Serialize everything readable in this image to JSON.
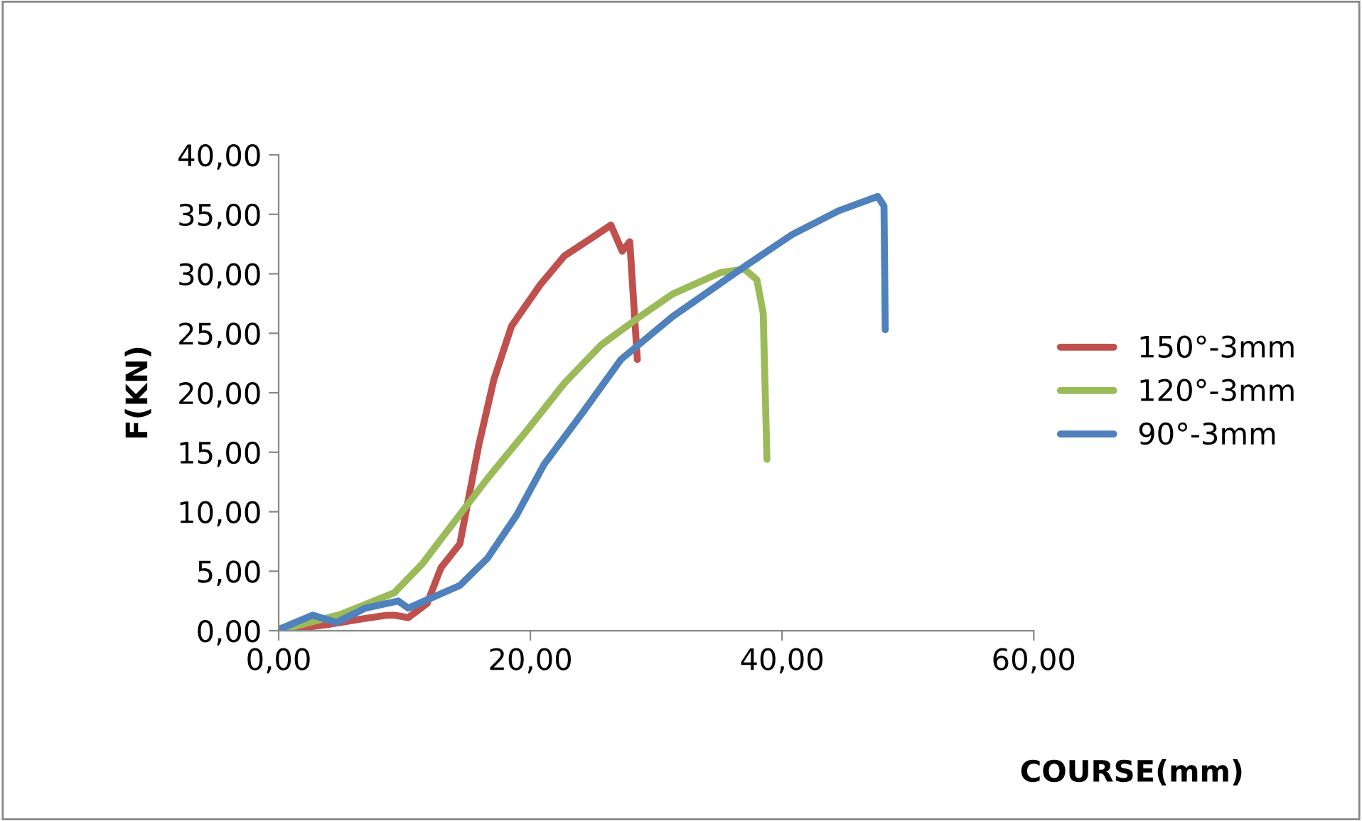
{
  "chart_data": {
    "type": "line",
    "xlabel": "COURSE(mm)",
    "ylabel": "F(KN)",
    "legend": "right",
    "grid": false,
    "marker": "none",
    "line_style": "solid",
    "xlim": [
      0,
      60
    ],
    "ylim": [
      0,
      40
    ],
    "xticks": [
      {
        "value": 0,
        "label": "0,00"
      },
      {
        "value": 20,
        "label": "20,00"
      },
      {
        "value": 40,
        "label": "40,00"
      },
      {
        "value": 60,
        "label": "60,00"
      }
    ],
    "yticks": [
      {
        "value": 0,
        "label": "0,00"
      },
      {
        "value": 5,
        "label": "5,00"
      },
      {
        "value": 10,
        "label": "10,00"
      },
      {
        "value": 15,
        "label": "15,00"
      },
      {
        "value": 20,
        "label": "20,00"
      },
      {
        "value": 25,
        "label": "25,00"
      },
      {
        "value": 30,
        "label": "30,00"
      },
      {
        "value": 35,
        "label": "35,00"
      },
      {
        "value": 40,
        "label": "40,00"
      }
    ],
    "series": [
      {
        "name": "150°-3mm",
        "color": "#c0504d",
        "x": [
          0,
          3.8,
          6.7,
          8.6,
          9.2,
          10.3,
          11.8,
          12.9,
          14.4,
          15.9,
          17.1,
          18.5,
          20.8,
          22.7,
          25.0,
          26.4,
          27.3,
          27.9,
          28.5
        ],
        "values": [
          0,
          0.5,
          1.0,
          1.3,
          1.3,
          1.1,
          2.3,
          5.3,
          7.3,
          15.6,
          21.1,
          25.6,
          29.1,
          31.5,
          33.1,
          34.1,
          31.9,
          32.7,
          22.8
        ]
      },
      {
        "name": "120°-3mm",
        "color": "#9bbb59",
        "x": [
          0,
          5.0,
          9.2,
          11.4,
          13.7,
          16.6,
          19.7,
          22.7,
          25.6,
          28.7,
          31.3,
          35.1,
          37.0,
          38.0,
          38.5,
          38.8
        ],
        "values": [
          0,
          1.4,
          3.2,
          5.6,
          8.8,
          12.8,
          16.8,
          20.8,
          24.0,
          26.4,
          28.3,
          30.1,
          30.4,
          29.5,
          26.7,
          14.4
        ]
      },
      {
        "name": "90°-3mm",
        "color": "#4f81bd",
        "x": [
          0,
          2.7,
          4.6,
          6.9,
          9.5,
          10.3,
          11.8,
          14.4,
          16.6,
          18.9,
          21.1,
          24.2,
          27.2,
          31.3,
          37.0,
          40.8,
          44.5,
          47.6,
          48.1,
          48.2
        ],
        "values": [
          0.1,
          1.3,
          0.7,
          1.9,
          2.5,
          1.9,
          2.6,
          3.8,
          6.1,
          9.7,
          14.0,
          18.4,
          22.8,
          26.4,
          30.6,
          33.3,
          35.3,
          36.5,
          35.7,
          25.3
        ]
      }
    ]
  }
}
